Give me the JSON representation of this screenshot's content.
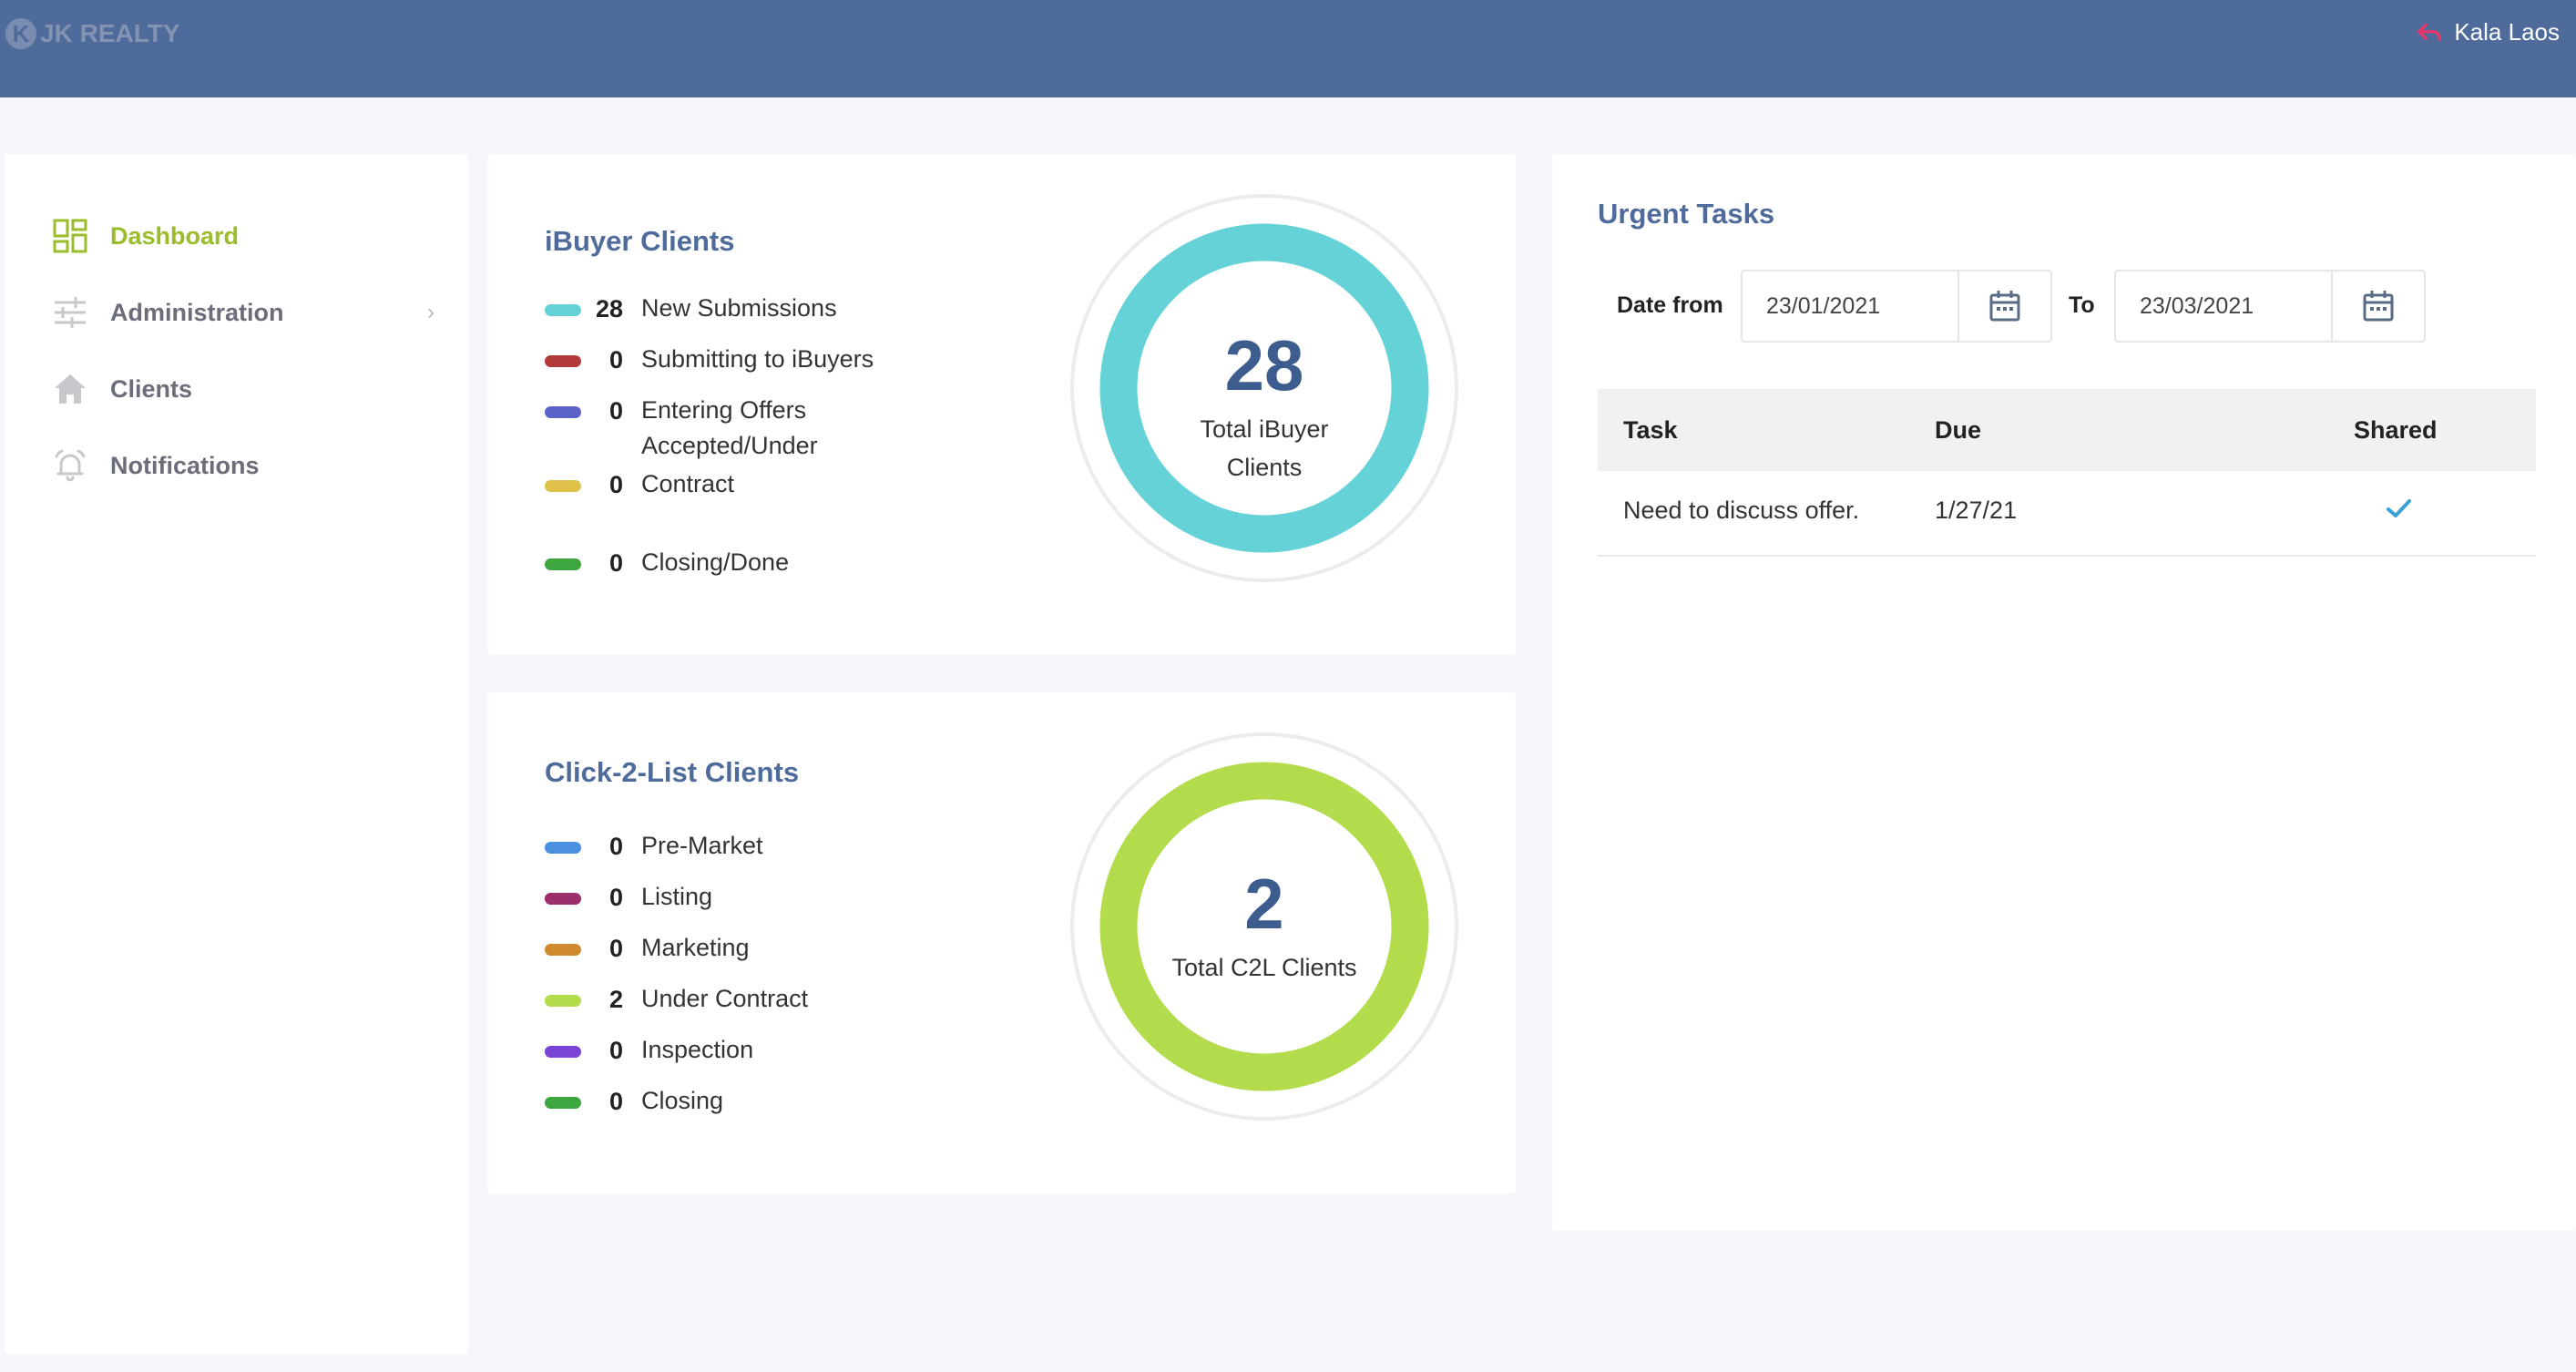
{
  "header": {
    "brand": "JK REALTY",
    "logo_letter": "K",
    "user_name": "Kala Laos",
    "user_icon": "undo-arrow-icon"
  },
  "sidebar": {
    "items": [
      {
        "label": "Dashboard",
        "icon": "dashboard-grid-icon",
        "active": true
      },
      {
        "label": "Administration",
        "icon": "sliders-icon",
        "chevron": "›"
      },
      {
        "label": "Clients",
        "icon": "house-icon"
      },
      {
        "label": "Notifications",
        "icon": "alarm-bell-icon"
      }
    ]
  },
  "ibuyer": {
    "title": "iBuyer Clients",
    "items": [
      {
        "value": "28",
        "label": "New Submissions",
        "color": "#64d2d6"
      },
      {
        "value": "0",
        "label": "Submitting to iBuyers",
        "color": "#b33a3a"
      },
      {
        "value": "0",
        "label": "Entering Offers",
        "color": "#5b63c9"
      },
      {
        "value": "0",
        "label": "Accepted/Under Contract",
        "color": "#e0c24a"
      },
      {
        "value": "0",
        "label": "Closing/Done",
        "color": "#3ea63e"
      }
    ],
    "total": "28",
    "total_label": "Total iBuyer Clients",
    "ring_color": "#64d2d6"
  },
  "c2l": {
    "title": "Click-2-List Clients",
    "items": [
      {
        "value": "0",
        "label": "Pre-Market",
        "color": "#4a8fe0"
      },
      {
        "value": "0",
        "label": "Listing",
        "color": "#9a2f6b"
      },
      {
        "value": "0",
        "label": "Marketing",
        "color": "#cf8a2e"
      },
      {
        "value": "2",
        "label": "Under Contract",
        "color": "#b2dc4c"
      },
      {
        "value": "0",
        "label": "Inspection",
        "color": "#7a45d6"
      },
      {
        "value": "0",
        "label": "Closing",
        "color": "#3ea63e"
      }
    ],
    "total": "2",
    "total_label": "Total C2L Clients",
    "ring_color": "#b2dc4c"
  },
  "urgent": {
    "title": "Urgent Tasks",
    "date_from_label": "Date from",
    "date_from": "23/01/2021",
    "to_label": "To",
    "date_to": "23/03/2021",
    "calendar_icon": "calendar-icon",
    "columns": [
      "Task",
      "Due",
      "Shared"
    ],
    "rows": [
      {
        "task": "Need to discuss offer.",
        "due": "1/27/21",
        "shared": true
      }
    ],
    "check_color": "#3aa0d8"
  }
}
